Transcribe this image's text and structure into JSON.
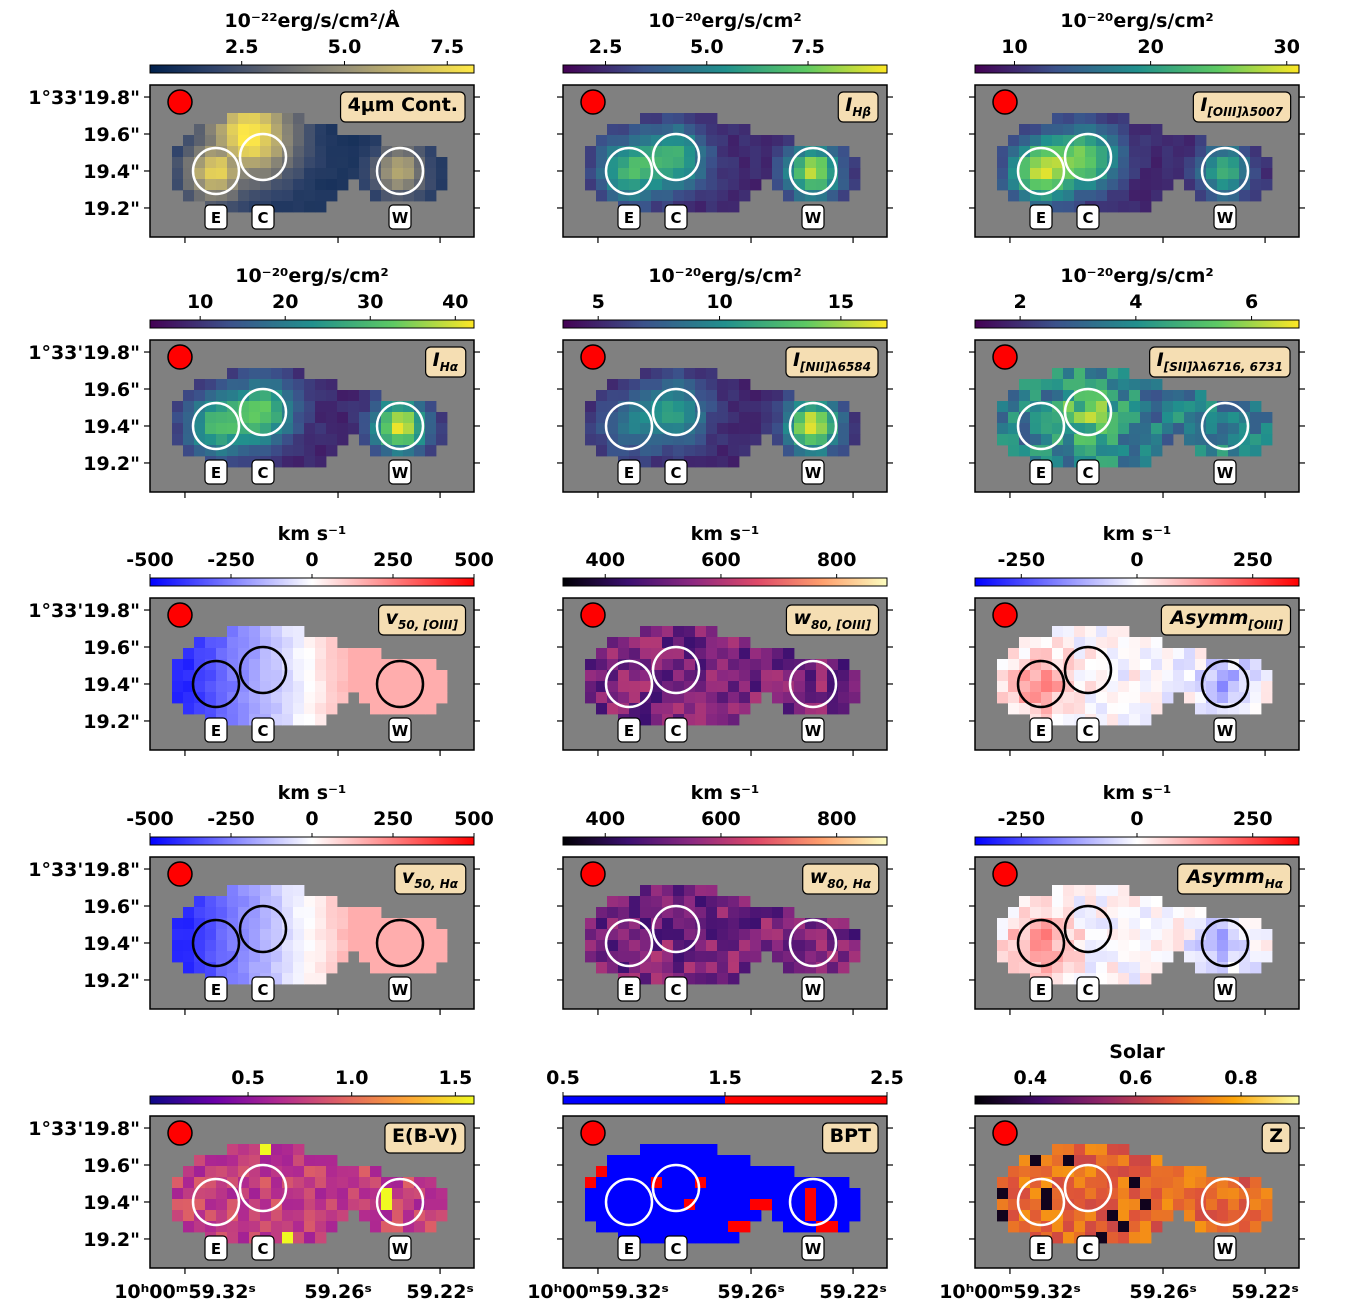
{
  "y_axis": {
    "lim": [
      19.043,
      19.865
    ],
    "ticks": [
      {
        "value": 19.8,
        "label": "1°33'19.8\""
      },
      {
        "value": 19.6,
        "label": "19.6\""
      },
      {
        "value": 19.4,
        "label": "19.4\""
      },
      {
        "value": 19.2,
        "label": "19.2\""
      }
    ]
  },
  "x_axis": {
    "lim": [
      59.3337,
      59.2067
    ],
    "ticks": [
      {
        "value": 59.32,
        "label": "10ʰ00ᵐ59.32ˢ"
      },
      {
        "value": 59.26,
        "label": "59.26ˢ"
      },
      {
        "value": 59.22,
        "label": "59.22ˢ"
      }
    ]
  },
  "region_labels": [
    "E",
    "C",
    "W"
  ],
  "panels": [
    {
      "colorbar_label": "10⁻²²erg/s/cm²/Å",
      "lim": [
        0.27,
        8.15
      ],
      "ticks": [
        {
          "value": 2.5,
          "label": "2.5"
        },
        {
          "value": 5.0,
          "label": "5.0"
        },
        {
          "value": 7.5,
          "label": "7.5"
        }
      ],
      "cmap": [
        "#00204c",
        "#31446b",
        "#666970",
        "#958f78",
        "#cbba69",
        "#ffe945"
      ],
      "label": {
        "text": "4μm Cont."
      },
      "circle": "#ffffff"
    },
    {
      "colorbar_label": "10⁻²⁰erg/s/cm²",
      "lim": [
        1.45,
        9.45
      ],
      "ticks": [
        {
          "value": 2.5,
          "label": "2.5"
        },
        {
          "value": 5.0,
          "label": "5.0"
        },
        {
          "value": 7.5,
          "label": "7.5"
        }
      ],
      "cmap": [
        "#440154",
        "#3b528b",
        "#21908d",
        "#5dc963",
        "#fde725"
      ],
      "label": {
        "text": "I",
        "sub": "Hβ"
      },
      "circle": "#ffffff"
    },
    {
      "colorbar_label": "10⁻²⁰erg/s/cm²",
      "lim": [
        7.1,
        30.9
      ],
      "ticks": [
        10,
        20,
        30
      ],
      "cmap": [
        "#440154",
        "#3b528b",
        "#21908d",
        "#5dc963",
        "#fde725"
      ],
      "label": {
        "text": "I",
        "sub": "[OIII]λ5007"
      },
      "circle": "#ffffff"
    },
    {
      "colorbar_label": "10⁻²⁰erg/s/cm²",
      "lim": [
        4.1,
        42.2
      ],
      "ticks": [
        10,
        20,
        30,
        40
      ],
      "cmap": [
        "#440154",
        "#3b528b",
        "#21908d",
        "#5dc963",
        "#fde725"
      ],
      "label": {
        "text": "I",
        "sub": "Hα"
      },
      "circle": "#ffffff"
    },
    {
      "colorbar_label": "10⁻²⁰erg/s/cm²",
      "lim": [
        3.55,
        16.9
      ],
      "ticks": [
        5,
        10,
        15
      ],
      "cmap": [
        "#440154",
        "#3b528b",
        "#21908d",
        "#5dc963",
        "#fde725"
      ],
      "label": {
        "text": "I",
        "sub": "[NII]λ6584"
      },
      "circle": "#ffffff"
    },
    {
      "colorbar_label": "10⁻²⁰erg/s/cm²",
      "lim": [
        1.22,
        6.82
      ],
      "ticks": [
        2,
        4,
        6
      ],
      "cmap": [
        "#440154",
        "#3b528b",
        "#21908d",
        "#5dc963",
        "#fde725"
      ],
      "label": {
        "text": "I",
        "sub": "[SII]λλ6716, 6731"
      },
      "circle": "#ffffff"
    },
    {
      "colorbar_label": "km s⁻¹",
      "lim": [
        -500,
        500
      ],
      "ticks": [
        -500,
        -250,
        0,
        250,
        500
      ],
      "cmap": [
        "#0000ff",
        "#ffffff",
        "#ff0000"
      ],
      "label": {
        "text": "v",
        "sub": "50, [OIII]"
      },
      "circle": "#000000"
    },
    {
      "colorbar_label": "km s⁻¹",
      "lim": [
        327,
        887
      ],
      "ticks": [
        400,
        600,
        800
      ],
      "cmap": [
        "#000004",
        "#3b0f70",
        "#8c2981",
        "#de4968",
        "#fe9f6d",
        "#fcfdbf"
      ],
      "label": {
        "text": "w",
        "sub": "80, [OIII]"
      },
      "circle": "#ffffff"
    },
    {
      "colorbar_label": "km s⁻¹",
      "lim": [
        -350,
        350
      ],
      "ticks": [
        -250,
        0,
        250
      ],
      "cmap": [
        "#0000ff",
        "#ffffff",
        "#ff0000"
      ],
      "label": {
        "text": "Asymm",
        "sub": "[OIII]"
      },
      "circle": "#000000"
    },
    {
      "colorbar_label": "km s⁻¹",
      "lim": [
        -500,
        500
      ],
      "ticks": [
        -500,
        -250,
        0,
        250,
        500
      ],
      "cmap": [
        "#0000ff",
        "#ffffff",
        "#ff0000"
      ],
      "label": {
        "text": "v",
        "sub": "50, Hα"
      },
      "circle": "#000000"
    },
    {
      "colorbar_label": "km s⁻¹",
      "lim": [
        327,
        887
      ],
      "ticks": [
        400,
        600,
        800
      ],
      "cmap": [
        "#000004",
        "#3b0f70",
        "#8c2981",
        "#de4968",
        "#fe9f6d",
        "#fcfdbf"
      ],
      "label": {
        "text": "w",
        "sub": "80, Hα"
      },
      "circle": "#ffffff"
    },
    {
      "colorbar_label": "km s⁻¹",
      "lim": [
        -350,
        350
      ],
      "ticks": [
        -250,
        0,
        250
      ],
      "cmap": [
        "#0000ff",
        "#ffffff",
        "#ff0000"
      ],
      "label": {
        "text": "Asymm",
        "sub": "Hα"
      },
      "circle": "#000000"
    },
    {
      "lim": [
        0.027,
        1.59
      ],
      "ticks": [
        0.5,
        {
          "value": 1.0,
          "label": "1.0"
        },
        1.5
      ],
      "cmap": [
        "#0d0887",
        "#6a00a8",
        "#b12a90",
        "#e16462",
        "#fca636",
        "#f0f921"
      ],
      "label": {
        "text": "E(B-V)"
      },
      "circle": "#ffffff"
    },
    {
      "lim": [
        0.5,
        2.5
      ],
      "ticks": [
        0.5,
        1.5,
        2.5
      ],
      "cmap": [
        "#0000ff",
        "#ff0000"
      ],
      "discrete": true,
      "label": {
        "text": "BPT"
      },
      "circle": "#ffffff"
    },
    {
      "colorbar_label": "Solar",
      "lim": [
        0.295,
        0.91
      ],
      "ticks": [
        0.4,
        0.6,
        0.8
      ],
      "cmap": [
        "#000004",
        "#420a68",
        "#932667",
        "#dd513a",
        "#fca50a",
        "#fcffa4"
      ],
      "label": {
        "text": "Z"
      },
      "circle": "#ffffff"
    }
  ]
}
